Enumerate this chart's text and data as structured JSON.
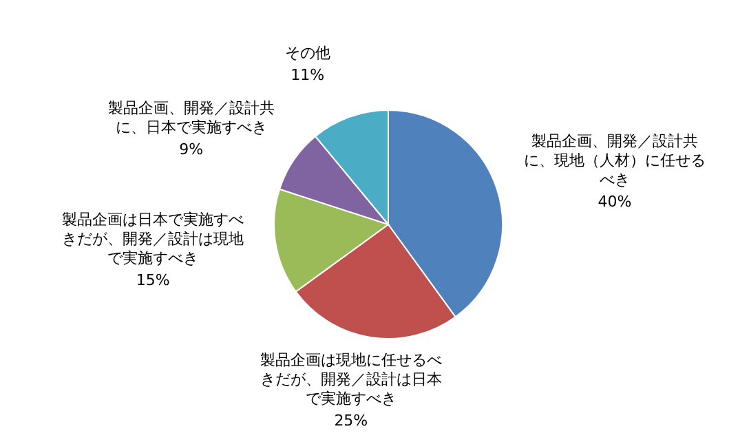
{
  "chart_data": {
    "type": "pie",
    "categories": [
      "製品企画、開発／設計共に、現地（人材）に任せるべき",
      "製品企画は現地に任せるべきだが、開発／設計は日本で実施すべき",
      "製品企画は日本で実施すべきだが、開発／設計は現地で実施すべき",
      "製品企画、開発／設計共に、日本で実施すべき",
      "その他"
    ],
    "values": [
      40,
      25,
      15,
      9,
      11
    ],
    "value_labels": [
      "40%",
      "25%",
      "15%",
      "9%",
      "11%"
    ],
    "colors": [
      "#4f81bd",
      "#c0504d",
      "#9bbb59",
      "#8064a2",
      "#4bacc6"
    ]
  }
}
